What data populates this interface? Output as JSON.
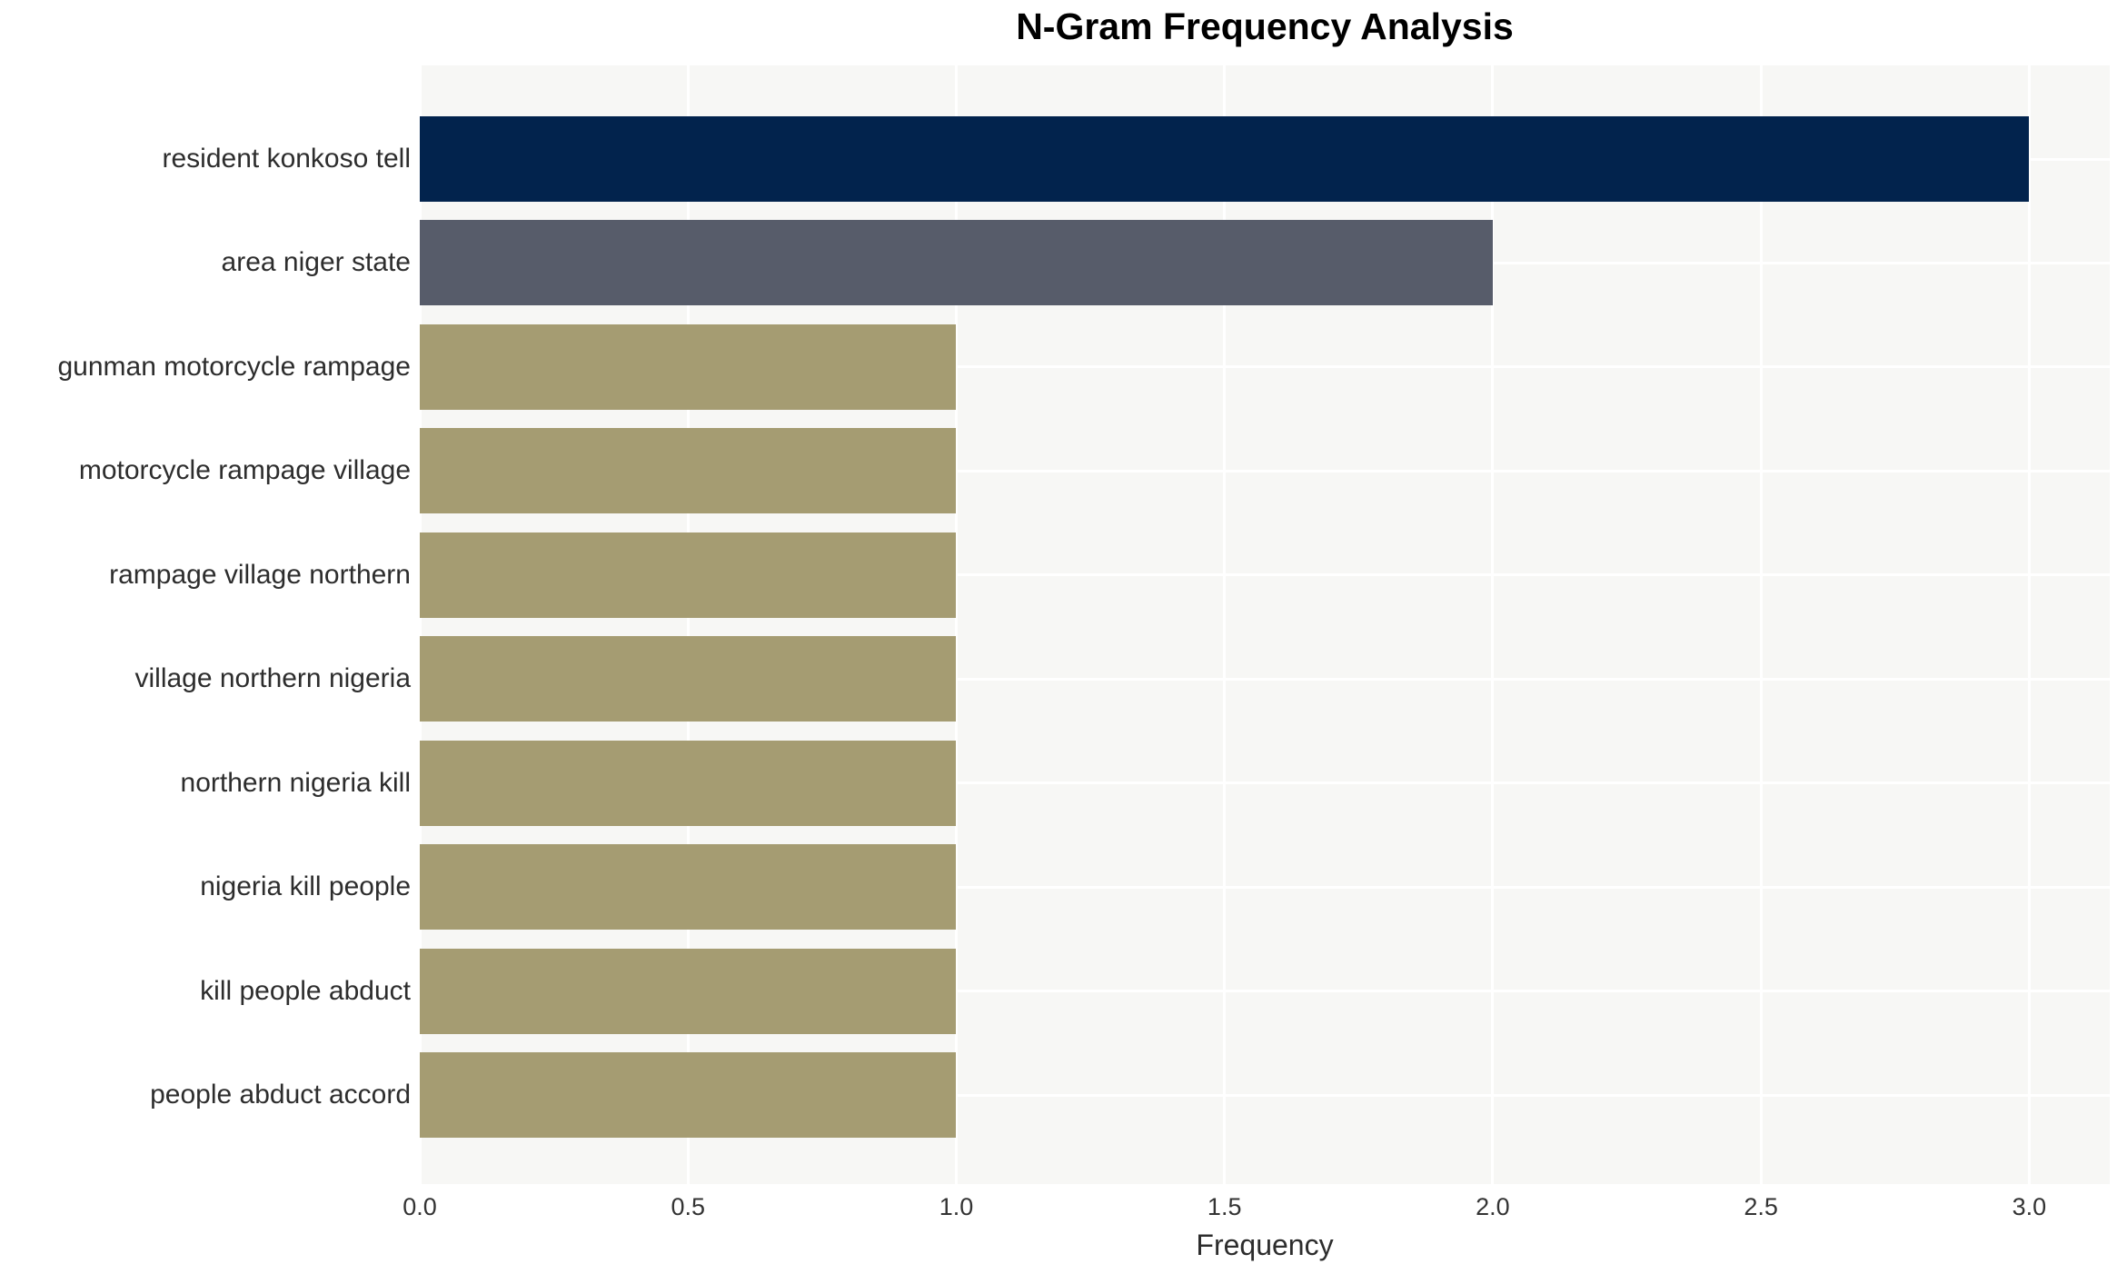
{
  "chart_data": {
    "type": "bar",
    "orientation": "horizontal",
    "title": "N-Gram Frequency Analysis",
    "xlabel": "Frequency",
    "ylabel": "",
    "categories": [
      "resident konkoso tell",
      "area niger state",
      "gunman motorcycle rampage",
      "motorcycle rampage village",
      "rampage village northern",
      "village northern nigeria",
      "northern nigeria kill",
      "nigeria kill people",
      "kill people abduct",
      "people abduct accord"
    ],
    "values": [
      3,
      2,
      1,
      1,
      1,
      1,
      1,
      1,
      1,
      1
    ],
    "bar_colors": [
      "#02234d",
      "#575c6a",
      "#a59c72",
      "#a59c72",
      "#a59c72",
      "#a59c72",
      "#a59c72",
      "#a59c72",
      "#a59c72",
      "#a59c72"
    ],
    "xlim": [
      0,
      3.15
    ],
    "xticks": [
      0.0,
      0.5,
      1.0,
      1.5,
      2.0,
      2.5,
      3.0
    ],
    "xtick_labels": [
      "0.0",
      "0.5",
      "1.0",
      "1.5",
      "2.0",
      "2.5",
      "3.0"
    ],
    "grid": true,
    "legend": false,
    "colors": {
      "plot_background": "#f7f7f5",
      "gridline": "#ffffff",
      "title_text": "#000000",
      "axis_text": "#2d2d2d",
      "tick_text": "#333333"
    }
  }
}
